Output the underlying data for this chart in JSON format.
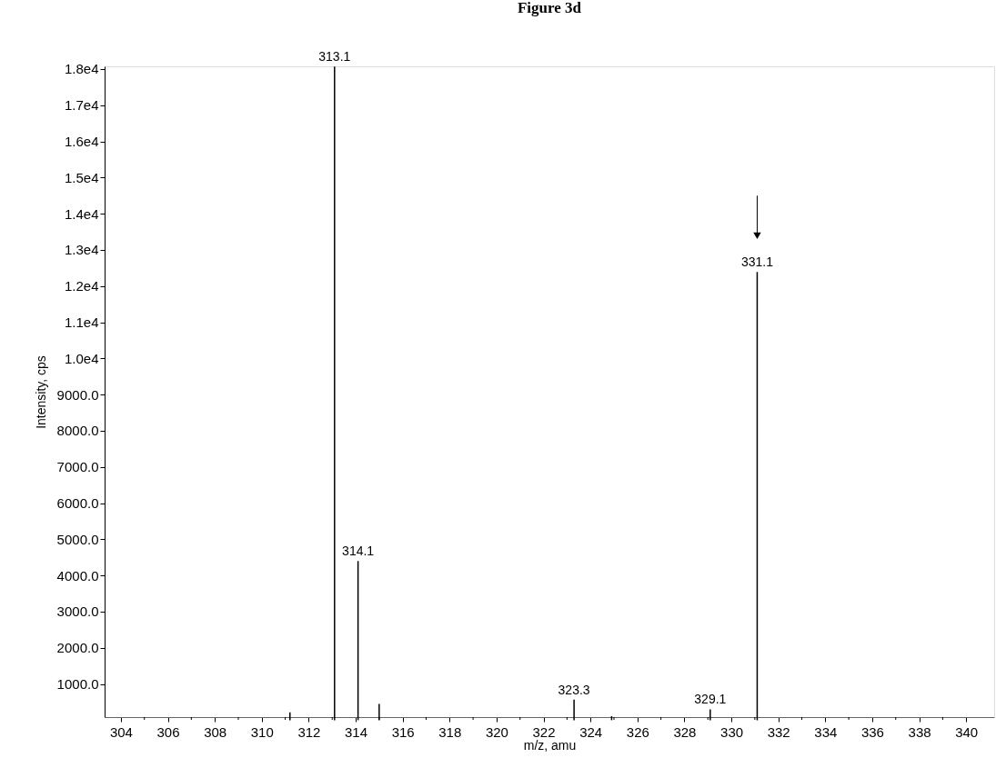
{
  "chart_data": {
    "type": "bar",
    "title": "Figure 3d",
    "xlabel": "m/z, amu",
    "ylabel": "Intensity, cps",
    "x": [
      311.2,
      313.1,
      314.1,
      315.0,
      323.3,
      324.9,
      329.1,
      331.1
    ],
    "values": [
      220,
      18070,
      4400,
      450,
      570,
      110,
      300,
      12390
    ],
    "annotations": [
      {
        "text": "313.1",
        "x": 313.1,
        "y": 18070
      },
      {
        "text": "314.1",
        "x": 314.1,
        "y": 4400
      },
      {
        "text": "323.3",
        "x": 323.3,
        "y": 570
      },
      {
        "text": "329.1",
        "x": 329.1,
        "y": 300
      },
      {
        "text": "331.1",
        "x": 331.1,
        "y": 12390
      }
    ],
    "color": "#000000",
    "xlim": [
      303.5,
      341
    ],
    "ylim": [
      85,
      18075
    ],
    "xticks": [
      304,
      {
        "value": 305,
        "label": null
      },
      306,
      {
        "value": 307,
        "label": null
      },
      308,
      {
        "value": 309,
        "label": null
      },
      310,
      {
        "value": 311,
        "label": null
      },
      312,
      {
        "value": 313,
        "label": null
      },
      314,
      {
        "value": 315,
        "label": null
      },
      316,
      {
        "value": 317,
        "label": null
      },
      318,
      {
        "value": 319,
        "label": null
      },
      320,
      {
        "value": 321,
        "label": null
      },
      322,
      {
        "value": 323,
        "label": null
      },
      324,
      {
        "value": 325,
        "label": null
      },
      326,
      {
        "value": 327,
        "label": null
      },
      328,
      {
        "value": 329,
        "label": null
      },
      330,
      {
        "value": 331,
        "label": null
      },
      332,
      {
        "value": 333,
        "label": null
      },
      334,
      {
        "value": 335,
        "label": null
      },
      336,
      {
        "value": 337,
        "label": null
      },
      338,
      {
        "value": 339,
        "label": null
      },
      340
    ],
    "yticks": [
      {
        "value": 1000,
        "label": "1000.0"
      },
      {
        "value": 2000,
        "label": "2000.0"
      },
      {
        "value": 3000,
        "label": "3000.0"
      },
      {
        "value": 4000,
        "label": "4000.0"
      },
      {
        "value": 5000,
        "label": "5000.0"
      },
      {
        "value": 6000,
        "label": "6000.0"
      },
      {
        "value": 7000,
        "label": "7000.0"
      },
      {
        "value": 8000,
        "label": "8000.0"
      },
      {
        "value": 9000,
        "label": "9000.0"
      },
      {
        "value": 10000,
        "label": "1.0e4"
      },
      {
        "value": 11000,
        "label": "1.1e4"
      },
      {
        "value": 12000,
        "label": "1.2e4"
      },
      {
        "value": 13000,
        "label": "1.3e4"
      },
      {
        "value": 14000,
        "label": "1.4e4"
      },
      {
        "value": 15000,
        "label": "1.5e4"
      },
      {
        "value": 16000,
        "label": "1.6e4"
      },
      {
        "value": 17000,
        "label": "1.7e4"
      },
      {
        "value": 18000,
        "label": "1.8e4"
      }
    ]
  }
}
